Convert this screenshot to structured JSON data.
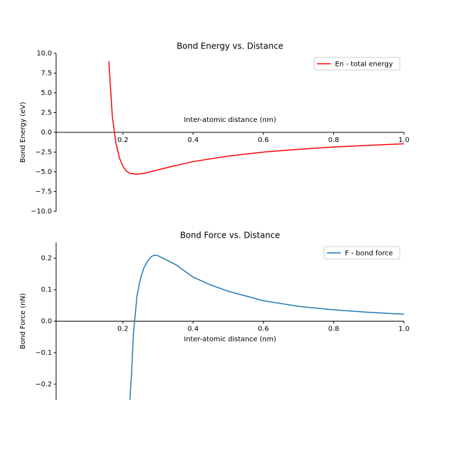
{
  "chart_data": [
    {
      "type": "line",
      "title": "Bond Energy vs. Distance",
      "xlabel": "Inter-atomic distance (nm)",
      "ylabel": "Bond Energy (eV)",
      "x": [
        0.16,
        0.17,
        0.18,
        0.19,
        0.2,
        0.21,
        0.22,
        0.24,
        0.26,
        0.3,
        0.35,
        0.4,
        0.5,
        0.6,
        0.7,
        0.8,
        0.9,
        1.0
      ],
      "series": [
        {
          "name": "En - total energy",
          "color": "#ff0000",
          "values": [
            9.0,
            2.0,
            -1.3,
            -3.2,
            -4.3,
            -4.9,
            -5.2,
            -5.3,
            -5.2,
            -4.75,
            -4.2,
            -3.7,
            -3.0,
            -2.5,
            -2.15,
            -1.85,
            -1.65,
            -1.45
          ]
        }
      ],
      "xlim": [
        0.01,
        1.0
      ],
      "ylim": [
        -10,
        10
      ],
      "xticks": [
        0.2,
        0.4,
        0.6,
        0.8,
        {
          "value": 1.0,
          "label": "1.0"
        }
      ],
      "yticks": [
        {
          "value": -10,
          "label": "−10.0"
        },
        {
          "value": -7.5,
          "label": "−7.5"
        },
        {
          "value": -5,
          "label": "−5.0"
        },
        {
          "value": -2.5,
          "label": "−2.5"
        },
        {
          "value": 0,
          "label": "0.0"
        },
        2.5,
        {
          "value": 5,
          "label": "5.0"
        },
        7.5,
        {
          "value": 10,
          "label": "10.0"
        }
      ],
      "legend": "upper right"
    },
    {
      "type": "line",
      "title": "Bond Force vs. Distance",
      "xlabel": "Inter-atomic distance (nm)",
      "ylabel": "Bond Force (nN)",
      "x": [
        0.22,
        0.225,
        0.23,
        0.235,
        0.24,
        0.25,
        0.26,
        0.27,
        0.28,
        0.29,
        0.3,
        0.35,
        0.4,
        0.45,
        0.5,
        0.6,
        0.7,
        0.8,
        0.9,
        1.0
      ],
      "series": [
        {
          "name": "F - bond force",
          "color": "#1f77b4",
          "values": [
            -0.25,
            -0.16,
            -0.04,
            0.02,
            0.08,
            0.135,
            0.17,
            0.19,
            0.205,
            0.21,
            0.208,
            0.18,
            0.14,
            0.115,
            0.095,
            0.065,
            0.047,
            0.036,
            0.028,
            0.022
          ]
        }
      ],
      "xlim": [
        0.01,
        1.0
      ],
      "ylim": [
        -0.25,
        0.25
      ],
      "xticks": [
        0.2,
        0.4,
        0.6,
        0.8,
        {
          "value": 1.0,
          "label": "1.0"
        }
      ],
      "yticks": [
        {
          "value": -0.2,
          "label": "−0.2"
        },
        {
          "value": -0.1,
          "label": "−0.1"
        },
        {
          "value": 0,
          "label": "0.0"
        },
        0.1,
        0.2
      ],
      "legend": "upper right"
    }
  ]
}
